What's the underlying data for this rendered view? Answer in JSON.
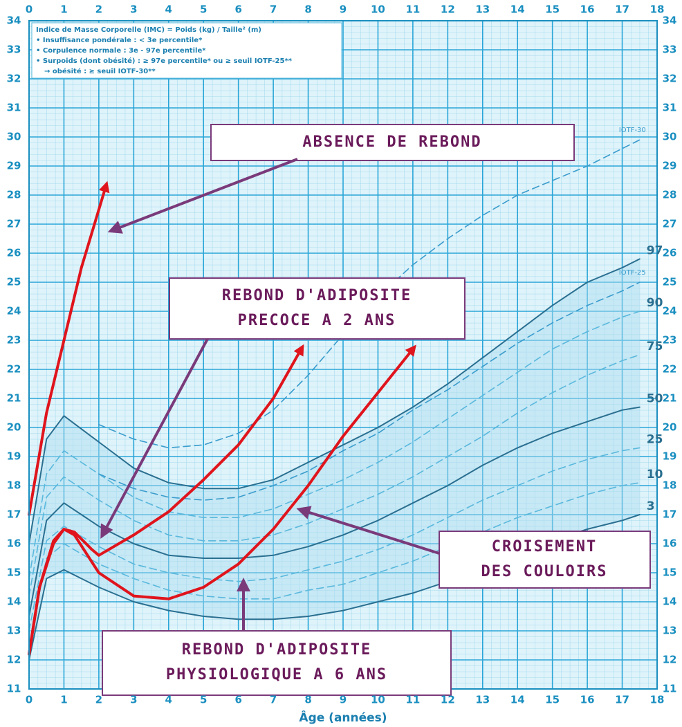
{
  "chart_data": {
    "type": "line",
    "x_label": "Âge (années)",
    "xlim": [
      0,
      18
    ],
    "xticks": [
      0,
      1,
      2,
      3,
      4,
      5,
      6,
      7,
      8,
      9,
      10,
      11,
      12,
      13,
      14,
      15,
      16,
      17,
      18
    ],
    "ylim": [
      11,
      34
    ],
    "yticks": [
      11,
      12,
      13,
      14,
      15,
      16,
      17,
      18,
      19,
      20,
      21,
      22,
      23,
      24,
      25,
      26,
      27,
      28,
      29,
      30,
      31,
      32,
      33,
      34
    ],
    "grid": true,
    "legend_text": [
      "Indice de Masse Corporelle (IMC) = Poids (kg) / Taille² (m)",
      "• Insuffisance pondérale : < 3e percentile*",
      "• Corpulence normale : 3e - 97e percentile*",
      "• Surpoids (dont obésité) : ≥ 97e percentile* ou ≥ seuil IOTF-25**",
      "→ obésité : ≥ seuil IOTF-30**"
    ],
    "annotations": [
      [
        "ABSENCE DE REBOND"
      ],
      [
        "REBOND D'ADIPOSITE",
        "PRECOCE A 2 ANS"
      ],
      [
        "CROISEMENT",
        "DES COULOIRS"
      ],
      [
        "REBOND D'ADIPOSITE",
        "PHYSIOLOGIQUE A 6 ANS"
      ]
    ],
    "x": [
      0,
      0.5,
      1,
      2,
      3,
      4,
      5,
      6,
      7,
      8,
      9,
      10,
      11,
      12,
      13,
      14,
      15,
      16,
      17,
      17.5
    ],
    "series": [
      {
        "name": "97",
        "color": "#2a6f90",
        "dashed": false,
        "values": [
          16,
          19.6,
          20.4,
          19.5,
          18.6,
          18.1,
          17.9,
          17.9,
          18.2,
          18.8,
          19.4,
          20.0,
          20.7,
          21.5,
          22.4,
          23.3,
          24.2,
          25.0,
          25.5,
          25.8
        ]
      },
      {
        "name": "90",
        "color": "#5ab8dc",
        "dashed": true,
        "values": [
          14.8,
          18.4,
          19.2,
          18.4,
          17.6,
          17.1,
          16.9,
          16.9,
          17.2,
          17.7,
          18.2,
          18.8,
          19.5,
          20.3,
          21.1,
          21.9,
          22.7,
          23.3,
          23.8,
          24.0
        ]
      },
      {
        "name": "75",
        "color": "#5ab8dc",
        "dashed": true,
        "values": [
          14.2,
          17.6,
          18.3,
          17.5,
          16.8,
          16.3,
          16.1,
          16.1,
          16.3,
          16.7,
          17.2,
          17.7,
          18.3,
          19.0,
          19.7,
          20.5,
          21.2,
          21.8,
          22.3,
          22.5
        ]
      },
      {
        "name": "50",
        "color": "#2a6f90",
        "dashed": false,
        "values": [
          13.5,
          16.8,
          17.4,
          16.6,
          16.0,
          15.6,
          15.5,
          15.5,
          15.6,
          15.9,
          16.3,
          16.8,
          17.4,
          18.0,
          18.7,
          19.3,
          19.8,
          20.2,
          20.6,
          20.7
        ]
      },
      {
        "name": "25",
        "color": "#5ab8dc",
        "dashed": true,
        "values": [
          13.0,
          16.1,
          16.6,
          15.9,
          15.3,
          15.0,
          14.8,
          14.7,
          14.8,
          15.1,
          15.4,
          15.8,
          16.3,
          16.9,
          17.5,
          18.0,
          18.5,
          18.9,
          19.2,
          19.3
        ]
      },
      {
        "name": "10",
        "color": "#5ab8dc",
        "dashed": true,
        "values": [
          12.5,
          15.5,
          16.0,
          15.3,
          14.8,
          14.4,
          14.2,
          14.1,
          14.1,
          14.4,
          14.6,
          15.0,
          15.4,
          15.9,
          16.4,
          16.9,
          17.3,
          17.7,
          18.0,
          18.1
        ]
      },
      {
        "name": "3",
        "color": "#2a6f90",
        "dashed": false,
        "values": [
          12,
          14.8,
          15.1,
          14.5,
          14.0,
          13.7,
          13.5,
          13.4,
          13.4,
          13.5,
          13.7,
          14.0,
          14.3,
          14.7,
          15.2,
          15.7,
          16.1,
          16.5,
          16.8,
          17.0
        ]
      },
      {
        "name": "IOTF-25",
        "color": "#3a9ccc",
        "dashed": true,
        "values": [
          null,
          null,
          null,
          18.4,
          17.9,
          17.6,
          17.5,
          17.6,
          18.0,
          18.5,
          19.2,
          19.8,
          20.6,
          21.3,
          22.1,
          22.9,
          23.6,
          24.2,
          24.7,
          25.0
        ]
      },
      {
        "name": "IOTF-30",
        "color": "#3a9ccc",
        "dashed": true,
        "values": [
          null,
          null,
          null,
          20.1,
          19.6,
          19.3,
          19.4,
          19.8,
          20.6,
          21.8,
          23.2,
          24.5,
          25.6,
          26.5,
          27.3,
          28.0,
          28.5,
          29.0,
          29.6,
          29.9
        ]
      },
      {
        "color": "#e0141c",
        "dashed": false,
        "x": [
          0,
          0.5,
          1,
          1.5,
          2.2
        ],
        "values": [
          17,
          20.5,
          23,
          25.5,
          28.3
        ]
      },
      {
        "color": "#e0141c",
        "dashed": false,
        "x": [
          0,
          0.3,
          0.7,
          1,
          1.3,
          1.8,
          2,
          3,
          4,
          5,
          6,
          7,
          7.8
        ],
        "values": [
          12.2,
          14.5,
          16,
          16.5,
          16.4,
          15.8,
          15.6,
          16.3,
          17.1,
          18.2,
          19.4,
          21,
          22.7
        ]
      },
      {
        "color": "#e0141c",
        "dashed": false,
        "x": [
          0,
          0.3,
          0.7,
          1,
          1.3,
          2,
          3,
          4,
          5,
          6,
          7,
          8,
          9,
          10,
          11
        ],
        "values": [
          12.2,
          14.5,
          16.1,
          16.5,
          16.3,
          15.0,
          14.2,
          14.1,
          14.5,
          15.3,
          16.5,
          18.0,
          19.7,
          21.2,
          22.7
        ]
      }
    ]
  }
}
